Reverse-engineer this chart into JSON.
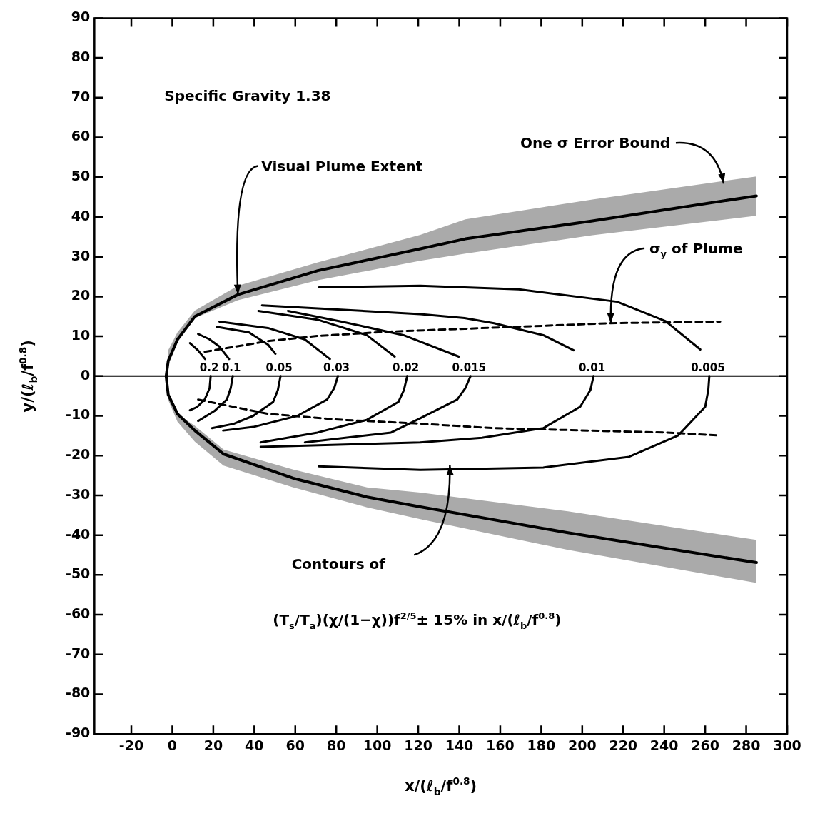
{
  "chart_data": {
    "type": "line",
    "xlabel": "x/(ℓ$_{b}$/f$^{0.8}$)",
    "ylabel": "y/(ℓ$_{b}$/f$^{0.8}$)",
    "xlim": [
      -38,
      300
    ],
    "xticks": [
      -20,
      0,
      20,
      40,
      60,
      80,
      100,
      120,
      140,
      160,
      180,
      200,
      220,
      240,
      260,
      280,
      300
    ],
    "ylim": [
      -90,
      90
    ],
    "yticks": [
      -90,
      -80,
      -70,
      -60,
      -50,
      -40,
      -30,
      -20,
      -10,
      0,
      10,
      20,
      30,
      40,
      50,
      60,
      70,
      80,
      90
    ],
    "grid": false,
    "legend": false,
    "ref_lines": [
      {
        "axis": "y",
        "value": 0
      }
    ],
    "annotations": [
      "Specific Gravity 1.38",
      {
        "text": "Visual Plume Extent",
        "x": 32,
        "y": 20.5
      },
      {
        "text": "One σ Error Bound",
        "x": 269,
        "y": 48.4
      },
      {
        "text": "σ$_{y}$ of Plume",
        "x": 214,
        "y": 13.3
      },
      "Contours of",
      "(T$_{s}$/T$_{a}$)(χ/(1−χ))f$^{2/5}$± 15% in x/(ℓ$_{b}$/f$^{0.8}$)"
    ],
    "series": [
      {
        "color": "#000000",
        "x": [
          285,
          205,
          143,
          121,
          71,
          32,
          11,
          2.5,
          -2,
          -3,
          -2,
          2.5,
          11,
          25,
          59,
          95,
          121,
          193,
          285
        ],
        "values": [
          45.3,
          39,
          34.5,
          32,
          26.5,
          20.5,
          15,
          9.2,
          3.8,
          0,
          -4.7,
          -9.5,
          -13.7,
          -19.6,
          -25.7,
          -30.4,
          -32.9,
          -39.4,
          -46.9
        ],
        "lower": [
          40.3,
          35.4,
          30.8,
          29,
          24.1,
          19.1,
          14.6,
          8.5,
          3.8,
          0,
          -6,
          -11.5,
          -16.5,
          -22.5,
          -28,
          -33,
          -36,
          -43.7,
          -52
        ],
        "upper": [
          50.2,
          44.4,
          39.4,
          35.5,
          28.6,
          22.7,
          16.5,
          11,
          6.5,
          0,
          -4.7,
          -9.5,
          -12.5,
          -18.5,
          -23.5,
          -28,
          -29.3,
          -34,
          -41.2
        ]
      },
      {
        "name": "0.2",
        "color": "#000000",
        "x": [
          8.6,
          12.5,
          16,
          null,
          18.7,
          18.2,
          15.8,
          12,
          8.6
        ],
        "values": [
          8.3,
          6.5,
          4.3,
          null,
          0,
          -3,
          -5.9,
          -7.8,
          -8.6
        ]
      },
      {
        "name": "0.1",
        "color": "#000000",
        "x": [
          12.6,
          18,
          23,
          27.7,
          null,
          29.5,
          28.5,
          26.6,
          20.5,
          12.6
        ],
        "values": [
          10.6,
          9.3,
          7.4,
          4.3,
          null,
          0,
          -3,
          -5.9,
          -8.8,
          -11.3
        ]
      },
      {
        "name": "0.05",
        "color": "#000000",
        "x": [
          21.6,
          37.4,
          46.7,
          50.3,
          null,
          52.8,
          51.5,
          49.2,
          39.5,
          30,
          19.4
        ],
        "values": [
          12.4,
          11,
          7.9,
          5.6,
          null,
          0,
          -3.5,
          -6.5,
          -10,
          -12,
          -13.1
        ]
      },
      {
        "name": "0.03",
        "color": "#000000",
        "x": [
          23,
          46.7,
          64.7,
          76.9,
          null,
          80.8,
          79,
          75.5,
          61,
          39.5,
          24.8
        ],
        "values": [
          13.7,
          12.1,
          9.2,
          4.3,
          null,
          0,
          -3,
          -5.9,
          -10,
          -12.8,
          -13.7
        ]
      },
      {
        "name": "0.02",
        "color": "#000000",
        "x": [
          42,
          70.8,
          94.9,
          108.5,
          null,
          114.6,
          113,
          110.3,
          94.9,
          70.8,
          43.1
        ],
        "values": [
          16.4,
          14.2,
          10.3,
          4.9,
          null,
          0,
          -3.5,
          -6.5,
          -11,
          -14.2,
          -16.7
        ]
      },
      {
        "name": "0.015",
        "color": "#000000",
        "x": [
          56.4,
          82.6,
          112.8,
          139.8,
          null,
          145.5,
          143,
          139,
          121,
          106.7,
          64.7
        ],
        "values": [
          16.4,
          13.7,
          10.3,
          4.9,
          null,
          0,
          -3,
          -5.9,
          -10.6,
          -14.2,
          -16.7
        ]
      },
      {
        "name": "0.01",
        "color": "#000000",
        "x": [
          43.8,
          121,
          142.6,
          157,
          181,
          195.8,
          null,
          205.5,
          204,
          199,
          181,
          151,
          121,
          43.1
        ],
        "values": [
          17.8,
          15.6,
          14.6,
          13.3,
          10.3,
          6.5,
          null,
          0,
          -3.5,
          -7.7,
          -13.1,
          -15.5,
          -16.7,
          -17.8
        ]
      },
      {
        "name": "0.005",
        "color": "#000000",
        "x": [
          71.5,
          121,
          169,
          217,
          240.7,
          257.6,
          null,
          262,
          261.5,
          260,
          246.9,
          222.8,
          181,
          121,
          71.5
        ],
        "values": [
          22.3,
          22.7,
          21.8,
          18.7,
          13.8,
          6.7,
          null,
          0,
          -3.5,
          -7.7,
          -14.9,
          -20.3,
          -23,
          -23.6,
          -22.7
        ]
      },
      {
        "color": "#000000",
        "line_style": "dashed",
        "x": [
          15.8,
          46.7,
          70.8,
          106.7,
          142.6,
          213.8,
          267.3
        ],
        "values": [
          6.1,
          8.8,
          10.1,
          11.2,
          11.9,
          13.3,
          13.7
        ]
      },
      {
        "color": "#000000",
        "line_style": "dashed",
        "x": [
          12.6,
          46.7,
          82.6,
          118.6,
          157,
          240.7,
          266
        ],
        "values": [
          -5.9,
          -9.5,
          -11,
          -11.9,
          -13.1,
          -14.2,
          -14.9
        ]
      }
    ]
  }
}
